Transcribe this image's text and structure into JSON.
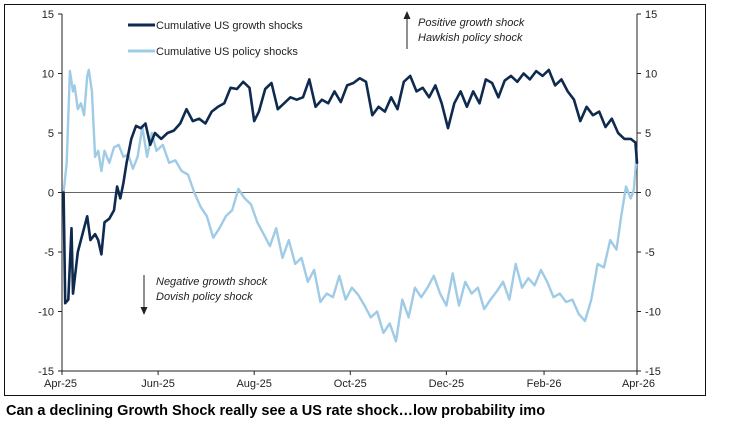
{
  "caption": "Can a declining Growth Shock really see a US rate shock…low probability imo",
  "chart_data": {
    "type": "line",
    "title": "",
    "xlabel": "",
    "ylabel": "",
    "ylim": [
      -15,
      15
    ],
    "yticks": [
      -15,
      -10,
      -5,
      0,
      5,
      10,
      15
    ],
    "ytick_labels": [
      "-15",
      "-10",
      "-5",
      "0",
      "5",
      "10",
      "15"
    ],
    "xticks": [
      {
        "date": "2025-04-01",
        "label": "Apr-25"
      },
      {
        "date": "2025-06-01",
        "label": "Jun-25"
      },
      {
        "date": "2025-08-01",
        "label": "Aug-25"
      },
      {
        "date": "2025-10-01",
        "label": "Oct-25"
      },
      {
        "date": "2025-12-01",
        "label": "Dec-25"
      },
      {
        "date": "2026-02-01",
        "label": "Feb-26"
      },
      {
        "date": "2026-04-01",
        "label": "Apr-26"
      }
    ],
    "xlim": [
      "2025-04-01",
      "2026-04-01"
    ],
    "zero_line": true,
    "legend_position": "top-left",
    "series": [
      {
        "name": "Cumulative US growth shocks",
        "color": "#0f2a4f",
        "points": [
          [
            "2025-04-02",
            0.0
          ],
          [
            "2025-04-03",
            -9.3
          ],
          [
            "2025-04-05",
            -9.0
          ],
          [
            "2025-04-07",
            -3.0
          ],
          [
            "2025-04-08",
            -8.5
          ],
          [
            "2025-04-11",
            -5.0
          ],
          [
            "2025-04-14",
            -3.5
          ],
          [
            "2025-04-17",
            -2.0
          ],
          [
            "2025-04-19",
            -4.0
          ],
          [
            "2025-04-22",
            -3.5
          ],
          [
            "2025-04-24",
            -4.0
          ],
          [
            "2025-04-26",
            -5.2
          ],
          [
            "2025-04-28",
            -2.5
          ],
          [
            "2025-05-01",
            -2.2
          ],
          [
            "2025-05-04",
            -1.5
          ],
          [
            "2025-05-06",
            0.5
          ],
          [
            "2025-05-08",
            -0.5
          ],
          [
            "2025-05-10",
            0.8
          ],
          [
            "2025-05-12",
            2.5
          ],
          [
            "2025-05-15",
            4.5
          ],
          [
            "2025-05-18",
            5.6
          ],
          [
            "2025-05-21",
            5.4
          ],
          [
            "2025-05-24",
            5.8
          ],
          [
            "2025-05-27",
            4.0
          ],
          [
            "2025-05-30",
            5.0
          ],
          [
            "2025-06-03",
            4.5
          ],
          [
            "2025-06-07",
            5.0
          ],
          [
            "2025-06-11",
            5.2
          ],
          [
            "2025-06-15",
            5.8
          ],
          [
            "2025-06-19",
            7.0
          ],
          [
            "2025-06-23",
            6.0
          ],
          [
            "2025-06-27",
            6.2
          ],
          [
            "2025-07-01",
            5.8
          ],
          [
            "2025-07-05",
            6.8
          ],
          [
            "2025-07-09",
            7.2
          ],
          [
            "2025-07-13",
            7.5
          ],
          [
            "2025-07-17",
            8.8
          ],
          [
            "2025-07-21",
            8.7
          ],
          [
            "2025-07-25",
            9.3
          ],
          [
            "2025-07-29",
            8.8
          ],
          [
            "2025-08-01",
            6.0
          ],
          [
            "2025-08-04",
            6.8
          ],
          [
            "2025-08-08",
            8.7
          ],
          [
            "2025-08-12",
            9.2
          ],
          [
            "2025-08-16",
            7.0
          ],
          [
            "2025-08-20",
            7.5
          ],
          [
            "2025-08-24",
            8.0
          ],
          [
            "2025-08-28",
            7.8
          ],
          [
            "2025-09-01",
            8.0
          ],
          [
            "2025-09-05",
            9.5
          ],
          [
            "2025-09-09",
            7.2
          ],
          [
            "2025-09-13",
            7.8
          ],
          [
            "2025-09-17",
            7.5
          ],
          [
            "2025-09-21",
            8.5
          ],
          [
            "2025-09-25",
            7.6
          ],
          [
            "2025-09-29",
            9.0
          ],
          [
            "2025-10-03",
            9.2
          ],
          [
            "2025-10-07",
            9.6
          ],
          [
            "2025-10-11",
            9.3
          ],
          [
            "2025-10-15",
            6.5
          ],
          [
            "2025-10-19",
            7.2
          ],
          [
            "2025-10-23",
            6.8
          ],
          [
            "2025-10-27",
            8.0
          ],
          [
            "2025-10-31",
            7.0
          ],
          [
            "2025-11-04",
            9.3
          ],
          [
            "2025-11-08",
            9.8
          ],
          [
            "2025-11-12",
            8.5
          ],
          [
            "2025-11-16",
            8.8
          ],
          [
            "2025-11-20",
            8.0
          ],
          [
            "2025-11-24",
            9.0
          ],
          [
            "2025-11-28",
            7.5
          ],
          [
            "2025-12-02",
            5.4
          ],
          [
            "2025-12-06",
            7.5
          ],
          [
            "2025-12-10",
            8.5
          ],
          [
            "2025-12-14",
            7.2
          ],
          [
            "2025-12-18",
            8.5
          ],
          [
            "2025-12-22",
            7.5
          ],
          [
            "2025-12-26",
            9.5
          ],
          [
            "2025-12-30",
            9.2
          ],
          [
            "2026-01-03",
            8.0
          ],
          [
            "2026-01-07",
            9.4
          ],
          [
            "2026-01-11",
            9.8
          ],
          [
            "2026-01-15",
            9.3
          ],
          [
            "2026-01-19",
            10.0
          ],
          [
            "2026-01-23",
            9.5
          ],
          [
            "2026-01-27",
            10.2
          ],
          [
            "2026-01-31",
            9.8
          ],
          [
            "2026-02-04",
            10.3
          ],
          [
            "2026-02-08",
            9.0
          ],
          [
            "2026-02-12",
            9.5
          ],
          [
            "2026-02-16",
            8.5
          ],
          [
            "2026-02-20",
            7.8
          ],
          [
            "2026-02-24",
            6.0
          ],
          [
            "2026-02-28",
            7.2
          ],
          [
            "2026-03-04",
            6.5
          ],
          [
            "2026-03-08",
            6.8
          ],
          [
            "2026-03-12",
            5.5
          ],
          [
            "2026-03-16",
            6.2
          ],
          [
            "2026-03-20",
            5.0
          ],
          [
            "2026-03-24",
            4.5
          ],
          [
            "2026-03-28",
            4.5
          ],
          [
            "2026-03-31",
            4.2
          ],
          [
            "2026-04-01",
            2.5
          ]
        ]
      },
      {
        "name": "Cumulative US policy shocks",
        "color": "#9fcbe6",
        "points": [
          [
            "2025-04-02",
            0.0
          ],
          [
            "2025-04-04",
            2.5
          ],
          [
            "2025-04-06",
            10.2
          ],
          [
            "2025-04-08",
            8.5
          ],
          [
            "2025-04-09",
            9.0
          ],
          [
            "2025-04-11",
            7.0
          ],
          [
            "2025-04-13",
            7.5
          ],
          [
            "2025-04-15",
            6.5
          ],
          [
            "2025-04-17",
            9.8
          ],
          [
            "2025-04-18",
            10.3
          ],
          [
            "2025-04-20",
            8.5
          ],
          [
            "2025-04-22",
            3.0
          ],
          [
            "2025-04-24",
            3.5
          ],
          [
            "2025-04-26",
            1.8
          ],
          [
            "2025-04-28",
            3.5
          ],
          [
            "2025-05-01",
            2.5
          ],
          [
            "2025-05-04",
            3.8
          ],
          [
            "2025-05-07",
            4.0
          ],
          [
            "2025-05-10",
            3.0
          ],
          [
            "2025-05-13",
            3.2
          ],
          [
            "2025-05-16",
            2.0
          ],
          [
            "2025-05-19",
            3.0
          ],
          [
            "2025-05-22",
            5.5
          ],
          [
            "2025-05-25",
            3.0
          ],
          [
            "2025-05-28",
            5.0
          ],
          [
            "2025-05-31",
            3.5
          ],
          [
            "2025-06-04",
            4.0
          ],
          [
            "2025-06-08",
            2.5
          ],
          [
            "2025-06-12",
            2.7
          ],
          [
            "2025-06-16",
            1.8
          ],
          [
            "2025-06-20",
            1.5
          ],
          [
            "2025-06-24",
            0.0
          ],
          [
            "2025-06-28",
            -1.2
          ],
          [
            "2025-07-02",
            -2.0
          ],
          [
            "2025-07-06",
            -3.8
          ],
          [
            "2025-07-10",
            -3.0
          ],
          [
            "2025-07-14",
            -2.0
          ],
          [
            "2025-07-18",
            -1.5
          ],
          [
            "2025-07-22",
            0.3
          ],
          [
            "2025-07-26",
            -0.5
          ],
          [
            "2025-07-30",
            -1.0
          ],
          [
            "2025-08-03",
            -2.5
          ],
          [
            "2025-08-07",
            -3.5
          ],
          [
            "2025-08-11",
            -4.5
          ],
          [
            "2025-08-15",
            -3.0
          ],
          [
            "2025-08-19",
            -5.5
          ],
          [
            "2025-08-23",
            -4.0
          ],
          [
            "2025-08-27",
            -6.0
          ],
          [
            "2025-08-31",
            -5.5
          ],
          [
            "2025-09-04",
            -7.5
          ],
          [
            "2025-09-08",
            -6.5
          ],
          [
            "2025-09-12",
            -9.2
          ],
          [
            "2025-09-16",
            -8.5
          ],
          [
            "2025-09-20",
            -8.8
          ],
          [
            "2025-09-24",
            -7.0
          ],
          [
            "2025-09-28",
            -9.0
          ],
          [
            "2025-10-02",
            -8.0
          ],
          [
            "2025-10-06",
            -8.6
          ],
          [
            "2025-10-10",
            -9.5
          ],
          [
            "2025-10-14",
            -10.5
          ],
          [
            "2025-10-18",
            -10.0
          ],
          [
            "2025-10-22",
            -11.8
          ],
          [
            "2025-10-26",
            -11.0
          ],
          [
            "2025-10-30",
            -12.5
          ],
          [
            "2025-11-03",
            -9.0
          ],
          [
            "2025-11-07",
            -10.5
          ],
          [
            "2025-11-11",
            -8.0
          ],
          [
            "2025-11-15",
            -8.8
          ],
          [
            "2025-11-19",
            -8.0
          ],
          [
            "2025-11-23",
            -7.0
          ],
          [
            "2025-11-27",
            -8.5
          ],
          [
            "2025-12-01",
            -9.5
          ],
          [
            "2025-12-05",
            -6.8
          ],
          [
            "2025-12-09",
            -9.5
          ],
          [
            "2025-12-13",
            -7.5
          ],
          [
            "2025-12-17",
            -8.5
          ],
          [
            "2025-12-21",
            -8.0
          ],
          [
            "2025-12-25",
            -9.8
          ],
          [
            "2025-12-29",
            -9.0
          ],
          [
            "2026-01-02",
            -8.3
          ],
          [
            "2026-01-06",
            -7.5
          ],
          [
            "2026-01-10",
            -9.0
          ],
          [
            "2026-01-14",
            -6.0
          ],
          [
            "2026-01-18",
            -8.0
          ],
          [
            "2026-01-22",
            -7.2
          ],
          [
            "2026-01-26",
            -7.8
          ],
          [
            "2026-01-30",
            -6.5
          ],
          [
            "2026-02-03",
            -7.5
          ],
          [
            "2026-02-07",
            -8.8
          ],
          [
            "2026-02-11",
            -8.5
          ],
          [
            "2026-02-15",
            -9.2
          ],
          [
            "2026-02-19",
            -9.0
          ],
          [
            "2026-02-23",
            -10.2
          ],
          [
            "2026-02-27",
            -10.8
          ],
          [
            "2026-03-03",
            -9.0
          ],
          [
            "2026-03-07",
            -6.0
          ],
          [
            "2026-03-11",
            -6.3
          ],
          [
            "2026-03-15",
            -4.0
          ],
          [
            "2026-03-19",
            -4.8
          ],
          [
            "2026-03-22",
            -2.0
          ],
          [
            "2026-03-25",
            0.5
          ],
          [
            "2026-03-28",
            -0.5
          ],
          [
            "2026-03-30",
            0.2
          ],
          [
            "2026-04-01",
            3.5
          ]
        ]
      }
    ],
    "annotations": [
      {
        "lines": [
          "Positive growth shock",
          "Hawkish policy shock"
        ],
        "arrow": "up"
      },
      {
        "lines": [
          "Negative growth shock",
          "Dovish policy shock"
        ],
        "arrow": "down"
      }
    ]
  }
}
